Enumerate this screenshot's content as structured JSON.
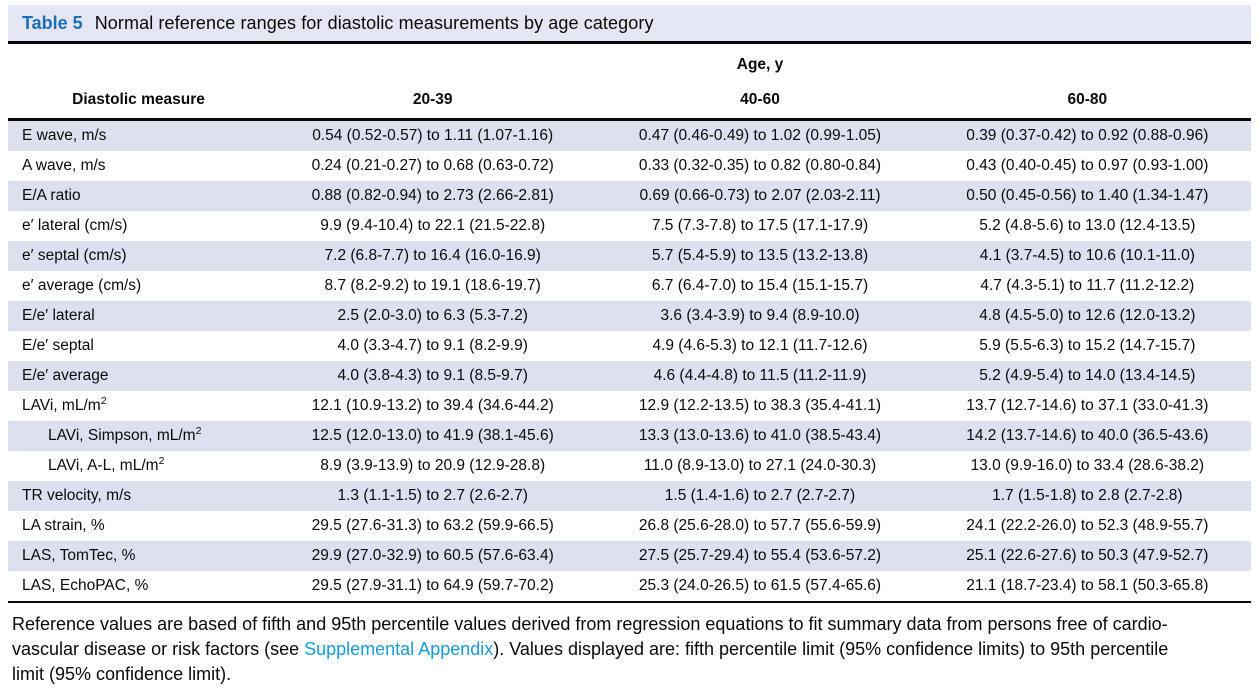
{
  "title": {
    "label": "Table 5",
    "caption": "Normal reference ranges for diastolic measurements by age category"
  },
  "table": {
    "col_group_header": "Age, y",
    "measure_header": "Diastolic measure",
    "age_columns": [
      "20-39",
      "40-60",
      "60-80"
    ],
    "rows": [
      {
        "measure": "E wave, m/s",
        "sup": "",
        "indent": false,
        "values": [
          "0.54 (0.52-0.57) to 1.11 (1.07-1.16)",
          "0.47 (0.46-0.49) to 1.02 (0.99-1.05)",
          "0.39 (0.37-0.42) to 0.92 (0.88-0.96)"
        ]
      },
      {
        "measure": "A wave, m/s",
        "sup": "",
        "indent": false,
        "values": [
          "0.24 (0.21-0.27) to 0.68 (0.63-0.72)",
          "0.33 (0.32-0.35) to 0.82 (0.80-0.84)",
          "0.43 (0.40-0.45) to 0.97 (0.93-1.00)"
        ]
      },
      {
        "measure": "E/A ratio",
        "sup": "",
        "indent": false,
        "values": [
          "0.88 (0.82-0.94) to 2.73 (2.66-2.81)",
          "0.69 (0.66-0.73) to 2.07 (2.03-2.11)",
          "0.50 (0.45-0.56) to 1.40 (1.34-1.47)"
        ]
      },
      {
        "measure": "e′ lateral (cm/s)",
        "sup": "",
        "indent": false,
        "values": [
          "9.9 (9.4-10.4) to 22.1 (21.5-22.8)",
          "7.5 (7.3-7.8) to 17.5 (17.1-17.9)",
          "5.2 (4.8-5.6) to 13.0 (12.4-13.5)"
        ]
      },
      {
        "measure": "e′ septal (cm/s)",
        "sup": "",
        "indent": false,
        "values": [
          "7.2 (6.8-7.7) to 16.4 (16.0-16.9)",
          "5.7 (5.4-5.9) to 13.5 (13.2-13.8)",
          "4.1 (3.7-4.5) to 10.6 (10.1-11.0)"
        ]
      },
      {
        "measure": "e′ average (cm/s)",
        "sup": "",
        "indent": false,
        "values": [
          "8.7 (8.2-9.2) to 19.1 (18.6-19.7)",
          "6.7 (6.4-7.0) to 15.4 (15.1-15.7)",
          "4.7 (4.3-5.1) to 11.7 (11.2-12.2)"
        ]
      },
      {
        "measure": "E/e′ lateral",
        "sup": "",
        "indent": false,
        "values": [
          "2.5 (2.0-3.0) to 6.3 (5.3-7.2)",
          "3.6 (3.4-3.9) to 9.4 (8.9-10.0)",
          "4.8 (4.5-5.0) to 12.6 (12.0-13.2)"
        ]
      },
      {
        "measure": "E/e′ septal",
        "sup": "",
        "indent": false,
        "values": [
          "4.0 (3.3-4.7) to 9.1 (8.2-9.9)",
          "4.9 (4.6-5.3) to 12.1 (11.7-12.6)",
          "5.9 (5.5-6.3) to 15.2 (14.7-15.7)"
        ]
      },
      {
        "measure": "E/e′ average",
        "sup": "",
        "indent": false,
        "values": [
          "4.0 (3.8-4.3) to 9.1 (8.5-9.7)",
          "4.6 (4.4-4.8) to 11.5 (11.2-11.9)",
          "5.2 (4.9-5.4) to 14.0 (13.4-14.5)"
        ]
      },
      {
        "measure": "LAVi, mL/m",
        "sup": "2",
        "indent": false,
        "values": [
          "12.1 (10.9-13.2) to 39.4 (34.6-44.2)",
          "12.9 (12.2-13.5) to 38.3 (35.4-41.1)",
          "13.7 (12.7-14.6) to 37.1 (33.0-41.3)"
        ]
      },
      {
        "measure": "LAVi, Simpson, mL/m",
        "sup": "2",
        "indent": true,
        "values": [
          "12.5 (12.0-13.0) to 41.9 (38.1-45.6)",
          "13.3 (13.0-13.6) to 41.0 (38.5-43.4)",
          "14.2 (13.7-14.6) to 40.0 (36.5-43.6)"
        ]
      },
      {
        "measure": "LAVi, A-L, mL/m",
        "sup": "2",
        "indent": true,
        "values": [
          "8.9 (3.9-13.9) to 20.9 (12.9-28.8)",
          "11.0 (8.9-13.0) to 27.1 (24.0-30.3)",
          "13.0 (9.9-16.0) to 33.4 (28.6-38.2)"
        ]
      },
      {
        "measure": "TR velocity, m/s",
        "sup": "",
        "indent": false,
        "values": [
          "1.3 (1.1-1.5) to 2.7 (2.6-2.7)",
          "1.5 (1.4-1.6) to 2.7 (2.7-2.7)",
          "1.7 (1.5-1.8) to 2.8 (2.7-2.8)"
        ]
      },
      {
        "measure": "LA strain, %",
        "sup": "",
        "indent": false,
        "values": [
          "29.5 (27.6-31.3) to 63.2 (59.9-66.5)",
          "26.8 (25.6-28.0) to 57.7 (55.6-59.9)",
          "24.1 (22.2-26.0) to 52.3 (48.9-55.7)"
        ]
      },
      {
        "measure": "LAS, TomTec, %",
        "sup": "",
        "indent": false,
        "values": [
          "29.9 (27.0-32.9) to 60.5 (57.6-63.4)",
          "27.5 (25.7-29.4) to 55.4 (53.6-57.2)",
          "25.1 (22.6-27.6) to 50.3 (47.9-52.7)"
        ]
      },
      {
        "measure": "LAS, EchoPAC, %",
        "sup": "",
        "indent": false,
        "values": [
          "29.5 (27.9-31.1) to 64.9 (59.7-70.2)",
          "25.3 (24.0-26.5) to 61.5 (57.4-65.6)",
          "21.1 (18.7-23.4) to 58.1 (50.3-65.8)"
        ]
      }
    ]
  },
  "footnote": {
    "line1": "Reference values are based of fifth and 95th percentile values derived from regression equations to fit summary data from persons free of cardio-",
    "line2_pre": "vascular disease or risk factors (see ",
    "link": "Supplemental Appendix",
    "line2_post": "). Values displayed are: fifth percentile limit (95% confidence limits) to 95th percentile",
    "line3": "limit (95% confidence limit)."
  },
  "colors": {
    "row_shading": "#dde1ef",
    "title_bar_bg": "#e4e7f3",
    "table_label_blue": "#1c6eb4",
    "link_blue": "#199bd9",
    "rule_black": "#0a0a0a"
  }
}
